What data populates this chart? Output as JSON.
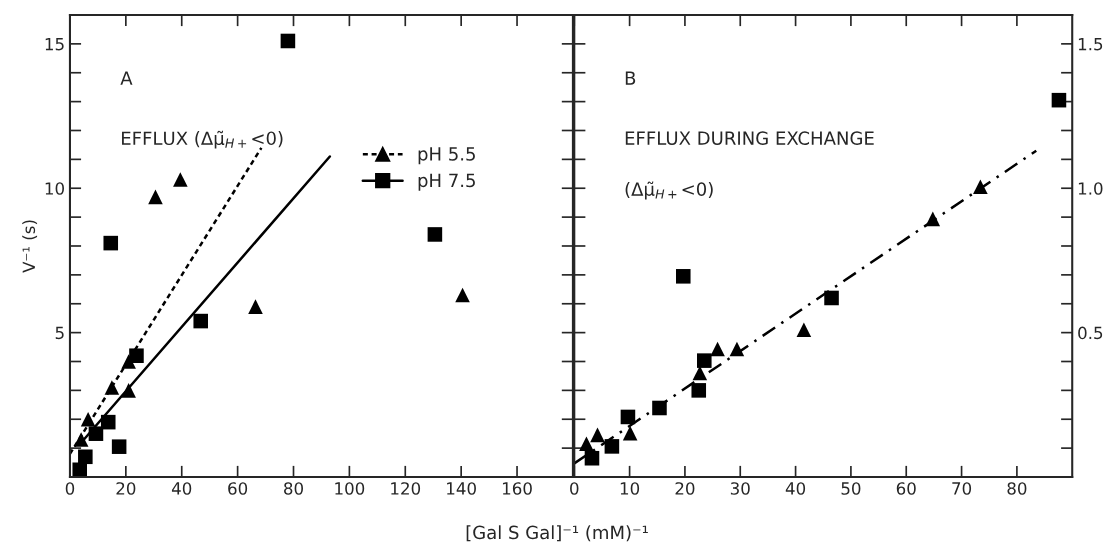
{
  "chart_data": [
    {
      "type": "scatter",
      "ylabel": "V⁻¹ (s)",
      "xlabel": "[Gal S Gal]⁻¹ (mM)⁻¹",
      "annotations": [
        "A",
        "EFFLUX (Δμ̃$_{H+}$<0)"
      ],
      "xlim": [
        0,
        180
      ],
      "ylim": [
        0,
        16
      ],
      "xticks": [
        0,
        20,
        40,
        60,
        80,
        100,
        120,
        140,
        160
      ],
      "yticks": [
        {
          "value": 1,
          "label": null
        },
        {
          "value": 2,
          "label": null
        },
        {
          "value": 3,
          "label": null
        },
        {
          "value": 4,
          "label": null
        },
        5,
        {
          "value": 6,
          "label": null
        },
        {
          "value": 7,
          "label": null
        },
        {
          "value": 8,
          "label": null
        },
        {
          "value": 9,
          "label": null
        },
        10,
        {
          "value": 11,
          "label": null
        },
        {
          "value": 12,
          "label": null
        },
        {
          "value": 13,
          "label": null
        },
        {
          "value": 14,
          "label": null
        },
        15
      ],
      "legend": "top right",
      "series": [
        {
          "name": "pH 5.5",
          "color": "#000000",
          "marker": "triangle",
          "line_style": "dotted",
          "x": [
            4,
            6.5,
            15,
            21,
            21,
            30.6,
            39.5,
            66.4,
            140.5
          ],
          "values": [
            1.3,
            2.0,
            3.1,
            3.0,
            4.0,
            9.7,
            10.3,
            5.9,
            6.3
          ]
        },
        {
          "name": "pH 7.5",
          "color": "#000000",
          "marker": "square",
          "line_style": "solid",
          "x": [
            3.5,
            5.5,
            9.3,
            13.7,
            14.6,
            17.6,
            23.8,
            46.8,
            78,
            130.6
          ],
          "values": [
            0.25,
            0.7,
            1.5,
            1.9,
            8.1,
            1.05,
            4.2,
            5.4,
            15.1,
            8.4
          ]
        },
        {
          "type": "line",
          "color": "#000000",
          "line_style": "dotted",
          "x": [
            0,
            68.5
          ],
          "values": [
            0.8,
            11.4
          ]
        },
        {
          "type": "line",
          "color": "#000000",
          "line_style": "solid",
          "x": [
            5,
            93
          ],
          "values": [
            1.3,
            11.1
          ]
        }
      ]
    },
    {
      "type": "scatter",
      "annotations": [
        "B",
        "EFFLUX DURING EXCHANGE",
        "(Δμ̃$_{H+}$<0)"
      ],
      "xlim": [
        0,
        90
      ],
      "ylim": [
        0,
        1.6
      ],
      "xticks": [
        0,
        10,
        20,
        30,
        40,
        50,
        60,
        70,
        80
      ],
      "yticks": [
        {
          "value": 0.1,
          "label": null
        },
        {
          "value": 0.2,
          "label": null
        },
        {
          "value": 0.3,
          "label": null
        },
        {
          "value": 0.4,
          "label": null
        },
        {
          "value": 0.5,
          "label": "0.5"
        },
        {
          "value": 0.6,
          "label": null
        },
        {
          "value": 0.7,
          "label": null
        },
        {
          "value": 0.8,
          "label": null
        },
        {
          "value": 0.9,
          "label": null
        },
        {
          "value": 1.0,
          "label": "1.0"
        },
        {
          "value": 1.1,
          "label": null
        },
        {
          "value": 1.2,
          "label": null
        },
        {
          "value": 1.3,
          "label": null
        },
        {
          "value": 1.4,
          "label": null
        },
        {
          "value": 1.5,
          "label": "1.5"
        }
      ],
      "series": [
        {
          "color": "#000000",
          "marker": "triangle",
          "x": [
            2.2,
            4.2,
            10.1,
            22.7,
            25.9,
            29.4,
            41.5,
            64.8,
            73.4
          ],
          "values": [
            0.115,
            0.146,
            0.152,
            0.36,
            0.443,
            0.443,
            0.51,
            0.894,
            1.005
          ]
        },
        {
          "color": "#000000",
          "marker": "square",
          "x": [
            3.2,
            6.8,
            9.7,
            15.4,
            19.7,
            22.5,
            23.5,
            46.5,
            87.6
          ],
          "values": [
            0.065,
            0.106,
            0.208,
            0.239,
            0.695,
            0.3,
            0.403,
            0.62,
            1.305
          ]
        },
        {
          "type": "line",
          "color": "#000000",
          "line_style": "dashed",
          "x": [
            0,
            83.5
          ],
          "values": [
            0.047,
            1.13
          ]
        }
      ]
    }
  ]
}
